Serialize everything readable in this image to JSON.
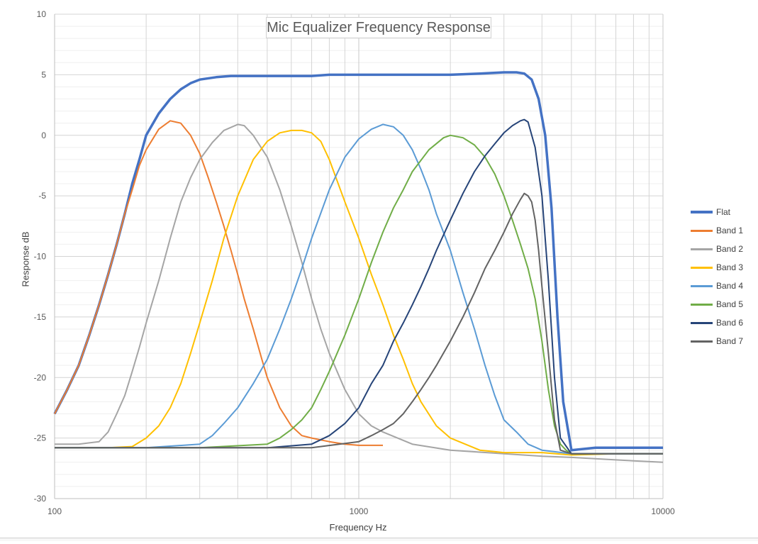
{
  "chart_data": {
    "type": "line",
    "title": "Mic Equalizer Frequency Response",
    "xlabel": "Frequency Hz",
    "ylabel": "Response dB",
    "xscale": "log",
    "xlim": [
      100,
      10000
    ],
    "ylim": [
      -30,
      10
    ],
    "xticks": [
      100,
      1000,
      10000
    ],
    "yticks": [
      10,
      5,
      0,
      -5,
      -10,
      -15,
      -20,
      -25,
      -30
    ],
    "ytick_labels": [
      "10",
      "5",
      "0",
      "-5",
      "-10",
      "-15",
      "-20",
      "-25",
      "-30"
    ],
    "grid": true,
    "legend_position": "right",
    "series": [
      {
        "name": "Flat",
        "color": "#4472c4",
        "x": [
          100,
          110,
          120,
          130,
          140,
          150,
          160,
          170,
          180,
          190,
          200,
          220,
          240,
          260,
          280,
          300,
          340,
          380,
          420,
          500,
          600,
          700,
          800,
          1000,
          1200,
          1500,
          2000,
          2500,
          3000,
          3300,
          3500,
          3700,
          3900,
          4100,
          4300,
          4500,
          4700,
          5000,
          6000,
          8000,
          10000
        ],
        "y": [
          -23,
          -21,
          -19,
          -16.5,
          -14,
          -11.5,
          -9,
          -6.5,
          -4,
          -2,
          0,
          1.8,
          3,
          3.8,
          4.3,
          4.6,
          4.8,
          4.9,
          4.9,
          4.9,
          4.9,
          4.9,
          5,
          5,
          5,
          5,
          5,
          5.1,
          5.2,
          5.2,
          5.1,
          4.6,
          3,
          0,
          -6,
          -15,
          -22,
          -26,
          -25.8,
          -25.8,
          -25.8
        ]
      },
      {
        "name": "Band 1",
        "color": "#ed7d31",
        "x": [
          100,
          110,
          120,
          130,
          140,
          150,
          160,
          170,
          180,
          190,
          200,
          220,
          240,
          260,
          280,
          300,
          320,
          340,
          360,
          380,
          400,
          420,
          450,
          480,
          500,
          550,
          600,
          650,
          700,
          800,
          900,
          1000,
          1100,
          1200
        ],
        "y": [
          -23,
          -21,
          -19,
          -16.5,
          -14,
          -11.5,
          -9,
          -6.5,
          -4.5,
          -2.5,
          -1.2,
          0.5,
          1.2,
          1,
          0,
          -1.5,
          -3.5,
          -5.5,
          -7.5,
          -9.5,
          -11.5,
          -13.5,
          -16,
          -18.5,
          -20,
          -22.5,
          -24,
          -24.8,
          -25,
          -25.3,
          -25.5,
          -25.6,
          -25.6,
          -25.6
        ]
      },
      {
        "name": "Band 2",
        "color": "#a5a5a5",
        "x": [
          100,
          120,
          140,
          150,
          160,
          170,
          180,
          190,
          200,
          220,
          240,
          260,
          280,
          300,
          330,
          360,
          400,
          420,
          450,
          500,
          550,
          600,
          650,
          700,
          750,
          800,
          900,
          1000,
          1100,
          1200,
          1500,
          2000,
          3000,
          4000,
          5000,
          7000,
          10000
        ],
        "y": [
          -25.5,
          -25.5,
          -25.3,
          -24.5,
          -23,
          -21.5,
          -19.5,
          -17.5,
          -15.5,
          -12,
          -8.5,
          -5.5,
          -3.5,
          -2,
          -0.6,
          0.4,
          0.9,
          0.8,
          0,
          -1.8,
          -4.5,
          -7.5,
          -10.5,
          -13.5,
          -16,
          -18,
          -21,
          -23,
          -24,
          -24.5,
          -25.5,
          -26,
          -26.3,
          -26.5,
          -26.6,
          -26.8,
          -27
        ]
      },
      {
        "name": "Band 3",
        "color": "#ffc000",
        "x": [
          100,
          150,
          180,
          200,
          220,
          240,
          260,
          280,
          300,
          330,
          360,
          400,
          450,
          500,
          550,
          600,
          650,
          700,
          750,
          800,
          900,
          1000,
          1100,
          1200,
          1300,
          1400,
          1500,
          1600,
          1800,
          2000,
          2500,
          3000,
          4000,
          5000,
          7000,
          10000
        ],
        "y": [
          -25.8,
          -25.8,
          -25.7,
          -25,
          -24,
          -22.5,
          -20.5,
          -18,
          -15.5,
          -12,
          -8.5,
          -5,
          -2,
          -0.5,
          0.2,
          0.4,
          0.4,
          0.2,
          -0.5,
          -2,
          -5.5,
          -8.5,
          -11.5,
          -14,
          -16.5,
          -18.5,
          -20.5,
          -22,
          -24,
          -25,
          -26,
          -26.2,
          -26.2,
          -26.4,
          -26.3,
          -26.3
        ]
      },
      {
        "name": "Band 4",
        "color": "#5b9bd5",
        "x": [
          100,
          200,
          300,
          330,
          360,
          400,
          450,
          500,
          550,
          600,
          650,
          700,
          800,
          900,
          1000,
          1100,
          1200,
          1300,
          1400,
          1500,
          1600,
          1700,
          1800,
          2000,
          2200,
          2400,
          2600,
          2800,
          3000,
          3300,
          3600,
          4000,
          5000,
          7000,
          10000
        ],
        "y": [
          -25.8,
          -25.8,
          -25.5,
          -24.8,
          -23.8,
          -22.5,
          -20.5,
          -18.5,
          -16,
          -13.5,
          -11,
          -8.5,
          -4.5,
          -1.8,
          -0.3,
          0.5,
          0.9,
          0.7,
          0,
          -1.2,
          -2.8,
          -4.5,
          -6.5,
          -9.5,
          -13,
          -16,
          -19,
          -21.5,
          -23.5,
          -24.5,
          -25.5,
          -26,
          -26.3,
          -26.3,
          -26.3
        ]
      },
      {
        "name": "Band 5",
        "color": "#70ad47",
        "x": [
          100,
          300,
          500,
          550,
          600,
          650,
          700,
          750,
          800,
          900,
          1000,
          1100,
          1200,
          1300,
          1400,
          1500,
          1700,
          1900,
          2000,
          2200,
          2400,
          2600,
          2800,
          3000,
          3200,
          3400,
          3600,
          3800,
          4000,
          4200,
          4400,
          4600,
          4800,
          5000,
          6000,
          7000,
          10000
        ],
        "y": [
          -25.8,
          -25.8,
          -25.5,
          -25,
          -24.3,
          -23.5,
          -22.5,
          -21,
          -19.5,
          -16.5,
          -13.5,
          -10.5,
          -8,
          -6,
          -4.5,
          -3,
          -1.2,
          -0.2,
          0,
          -0.2,
          -0.8,
          -1.8,
          -3.2,
          -5,
          -7,
          -9,
          -11,
          -13.5,
          -17,
          -21,
          -24,
          -25.5,
          -26,
          -26.3,
          -26.3,
          -26.3,
          -26.3
        ]
      },
      {
        "name": "Band 6",
        "color": "#264478",
        "x": [
          100,
          500,
          700,
          800,
          900,
          1000,
          1100,
          1200,
          1300,
          1400,
          1500,
          1600,
          1700,
          1800,
          2000,
          2200,
          2400,
          2600,
          2800,
          3000,
          3200,
          3400,
          3500,
          3600,
          3800,
          4000,
          4200,
          4400,
          4600,
          5000,
          6000,
          7000,
          10000
        ],
        "y": [
          -25.8,
          -25.8,
          -25.5,
          -24.8,
          -23.8,
          -22.5,
          -20.5,
          -19,
          -17,
          -15.5,
          -14,
          -12.5,
          -11,
          -9.5,
          -7,
          -4.8,
          -3,
          -1.7,
          -0.7,
          0.2,
          0.8,
          1.2,
          1.3,
          1.1,
          -1,
          -5,
          -12,
          -20,
          -25,
          -26.3,
          -26.3,
          -26.3,
          -26.3
        ]
      },
      {
        "name": "Band 7",
        "color": "#636363",
        "x": [
          100,
          700,
          1000,
          1100,
          1200,
          1300,
          1400,
          1500,
          1600,
          1700,
          1800,
          2000,
          2200,
          2400,
          2600,
          2800,
          3000,
          3200,
          3400,
          3500,
          3600,
          3700,
          3800,
          3900,
          4000,
          4200,
          4400,
          4600,
          5000,
          6000,
          7000,
          10000
        ],
        "y": [
          -25.8,
          -25.8,
          -25.3,
          -24.8,
          -24.3,
          -23.8,
          -23,
          -22,
          -21,
          -20,
          -19,
          -17,
          -15,
          -13,
          -11,
          -9.5,
          -8,
          -6.5,
          -5.3,
          -4.8,
          -5,
          -5.5,
          -7,
          -9.5,
          -12.5,
          -18,
          -23.5,
          -26,
          -26.3,
          -26.3,
          -26.3,
          -26.3
        ]
      }
    ]
  }
}
